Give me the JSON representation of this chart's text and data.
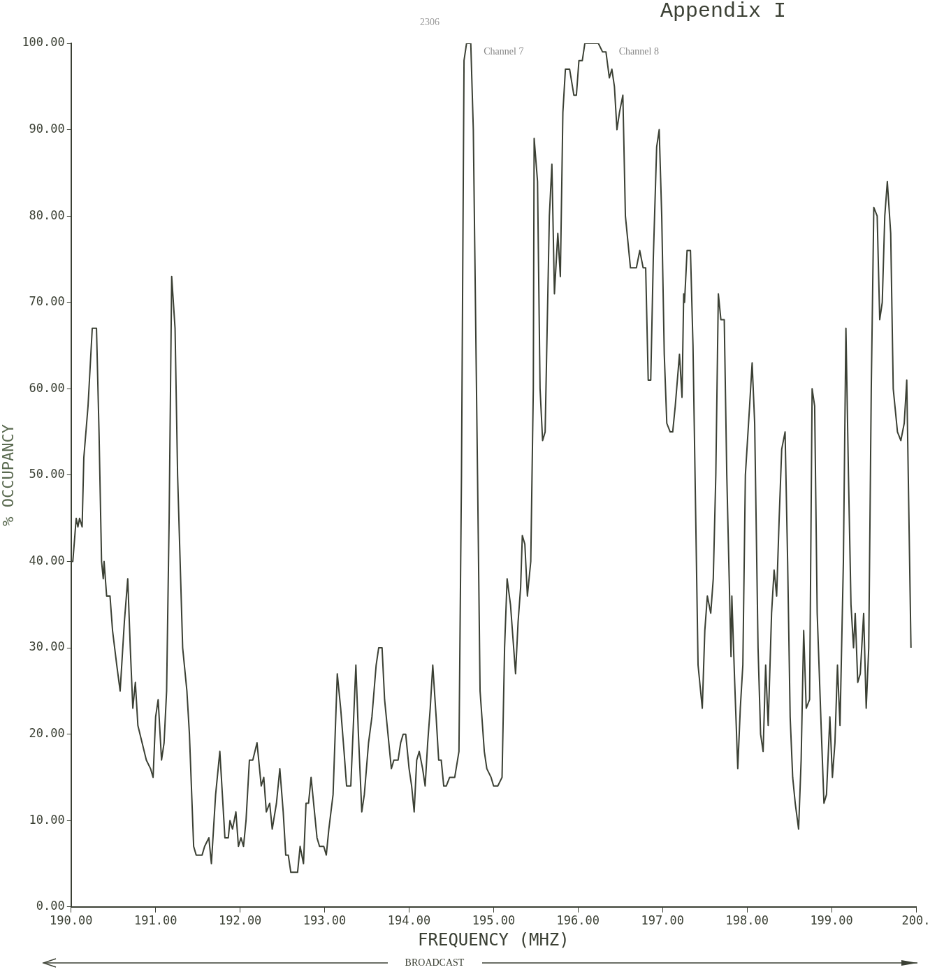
{
  "chart_data": {
    "type": "line",
    "title": "Appendix I",
    "xlabel": "FREQUENCY (MHZ)",
    "ylabel": "% OCCUPANCY",
    "xlim": [
      190,
      200
    ],
    "ylim": [
      0,
      100
    ],
    "xticks": [
      {
        "value": 190,
        "label": "190.00"
      },
      {
        "value": 191,
        "label": "191.00"
      },
      {
        "value": 192,
        "label": "192.00"
      },
      {
        "value": 193,
        "label": "193.00"
      },
      {
        "value": 194,
        "label": "194.00"
      },
      {
        "value": 195,
        "label": "195.00"
      },
      {
        "value": 196,
        "label": "196.00"
      },
      {
        "value": 197,
        "label": "197.00"
      },
      {
        "value": 198,
        "label": "198.00"
      },
      {
        "value": 199,
        "label": "199.00"
      },
      {
        "value": 200,
        "label": "200."
      }
    ],
    "yticks": [
      {
        "value": 0,
        "label": "0.00"
      },
      {
        "value": 10,
        "label": "10.00"
      },
      {
        "value": 20,
        "label": "20.00"
      },
      {
        "value": 30,
        "label": "30.00"
      },
      {
        "value": 40,
        "label": "40.00"
      },
      {
        "value": 50,
        "label": "50.00"
      },
      {
        "value": 60,
        "label": "60.00"
      },
      {
        "value": 70,
        "label": "70.00"
      },
      {
        "value": 80,
        "label": "80.00"
      },
      {
        "value": 90,
        "label": "90.00"
      },
      {
        "value": 100,
        "label": "100.00"
      }
    ],
    "grid": false,
    "legend": false,
    "marker": "none",
    "line_style": "solid",
    "annotations": [
      "2306",
      "Channel 7",
      "Channel 8",
      "BROADCAST"
    ],
    "series": [
      {
        "color": "#3b4034",
        "x": [
          190.0,
          190.02,
          190.06,
          190.08,
          190.1,
          190.13,
          190.15,
          190.2,
          190.25,
          190.3,
          190.33,
          190.36,
          190.38,
          190.39,
          190.42,
          190.46,
          190.49,
          190.54,
          190.58,
          190.63,
          190.67,
          190.7,
          190.73,
          190.76,
          190.79,
          190.84,
          190.89,
          190.94,
          190.97,
          191.0,
          191.03,
          191.07,
          191.1,
          191.13,
          191.16,
          191.19,
          191.23,
          191.26,
          191.32,
          191.37,
          191.4,
          191.45,
          191.48,
          191.55,
          191.58,
          191.63,
          191.66,
          191.71,
          191.76,
          191.82,
          191.86,
          191.88,
          191.91,
          191.95,
          191.98,
          192.01,
          192.04,
          192.07,
          192.11,
          192.15,
          192.2,
          192.25,
          192.28,
          192.31,
          192.35,
          192.38,
          192.43,
          192.47,
          192.51,
          192.54,
          192.57,
          192.6,
          192.68,
          192.71,
          192.75,
          192.78,
          192.81,
          192.84,
          192.87,
          192.91,
          192.94,
          192.99,
          193.02,
          193.05,
          193.1,
          193.15,
          193.19,
          193.23,
          193.26,
          193.31,
          193.37,
          193.4,
          193.44,
          193.47,
          193.52,
          193.56,
          193.61,
          193.64,
          193.68,
          193.71,
          193.74,
          193.79,
          193.82,
          193.87,
          193.9,
          193.93,
          193.96,
          194.0,
          194.03,
          194.06,
          194.09,
          194.12,
          194.16,
          194.19,
          194.22,
          194.25,
          194.28,
          194.32,
          194.35,
          194.38,
          194.41,
          194.44,
          194.48,
          194.54,
          194.59,
          194.62,
          194.65,
          194.68,
          194.73,
          194.76,
          194.81,
          194.84,
          194.89,
          194.92,
          194.97,
          195.0,
          195.05,
          195.1,
          195.13,
          195.16,
          195.2,
          195.23,
          195.26,
          195.29,
          195.32,
          195.34,
          195.37,
          195.4,
          195.44,
          195.47,
          195.48,
          195.52,
          195.55,
          195.58,
          195.61,
          195.66,
          195.69,
          195.72,
          195.76,
          195.79,
          195.82,
          195.85,
          195.9,
          195.95,
          195.98,
          196.01,
          196.05,
          196.08,
          196.24,
          196.29,
          196.33,
          196.37,
          196.4,
          196.43,
          196.46,
          196.49,
          196.53,
          196.56,
          196.62,
          196.69,
          196.73,
          196.77,
          196.8,
          196.83,
          196.86,
          196.89,
          196.93,
          196.96,
          196.99,
          197.02,
          197.05,
          197.09,
          197.12,
          197.15,
          197.2,
          197.23,
          197.25,
          197.26,
          197.29,
          197.33,
          197.36,
          197.42,
          197.47,
          197.5,
          197.53,
          197.57,
          197.6,
          197.63,
          197.66,
          197.69,
          197.73,
          197.76,
          197.81,
          197.82,
          197.85,
          197.89,
          197.92,
          197.95,
          197.98,
          198.03,
          198.06,
          198.09,
          198.13,
          198.16,
          198.19,
          198.22,
          198.25,
          198.29,
          198.32,
          198.35,
          198.38,
          198.41,
          198.45,
          198.48,
          198.51,
          198.54,
          198.57,
          198.61,
          198.64,
          198.67,
          198.7,
          198.74,
          198.77,
          198.8,
          198.83,
          198.88,
          198.91,
          198.94,
          198.98,
          199.01,
          199.04,
          199.07,
          199.1,
          199.14,
          199.17,
          199.2,
          199.23,
          199.26,
          199.28,
          199.31,
          199.34,
          199.38,
          199.41,
          199.44,
          199.47,
          199.5,
          199.54,
          199.57,
          199.6,
          199.63,
          199.66,
          199.7,
          199.73,
          199.78,
          199.82,
          199.86,
          199.89,
          199.94
        ],
        "values": [
          40,
          40,
          45,
          44,
          45,
          44,
          52,
          58,
          67,
          67,
          55,
          40,
          38,
          40,
          36,
          36,
          32,
          28,
          25,
          33,
          38,
          30,
          23,
          26,
          21,
          19,
          17,
          16,
          15,
          22,
          24,
          17,
          19,
          25,
          45,
          73,
          67,
          50,
          30,
          25,
          20,
          7,
          6,
          6,
          7,
          8,
          5,
          13,
          18,
          8,
          8,
          10,
          9,
          11,
          7,
          8,
          7,
          10,
          17,
          17,
          19,
          14,
          15,
          11,
          12,
          9,
          12,
          16,
          11,
          6,
          6,
          4,
          4,
          7,
          5,
          12,
          12,
          15,
          12,
          8,
          7,
          7,
          6,
          9,
          13,
          27,
          23,
          18,
          14,
          14,
          28,
          20,
          11,
          13,
          19,
          22,
          28,
          30,
          30,
          24,
          21,
          16,
          17,
          17,
          19,
          20,
          20,
          16,
          14,
          11,
          17,
          18,
          16,
          14,
          19,
          23,
          28,
          22,
          17,
          17,
          14,
          14,
          15,
          15,
          18,
          50,
          98,
          100,
          100,
          90,
          50,
          25,
          18,
          16,
          15,
          14,
          14,
          15,
          30,
          38,
          35,
          31,
          27,
          33,
          37,
          43,
          42,
          36,
          40,
          60,
          89,
          84,
          60,
          54,
          55,
          80,
          86,
          71,
          78,
          73,
          92,
          97,
          97,
          94,
          94,
          98,
          98,
          100,
          100,
          99,
          99,
          96,
          97,
          95,
          90,
          92,
          94,
          80,
          74,
          74,
          76,
          74,
          74,
          61,
          61,
          75,
          88,
          90,
          80,
          64,
          56,
          55,
          55,
          58,
          64,
          59,
          71,
          70,
          76,
          76,
          65,
          28,
          23,
          32,
          36,
          34,
          38,
          50,
          71,
          68,
          68,
          50,
          29,
          36,
          27,
          16,
          23,
          28,
          50,
          58,
          63,
          56,
          30,
          20,
          18,
          28,
          21,
          34,
          39,
          36,
          45,
          53,
          55,
          40,
          22,
          15,
          12,
          9,
          17,
          32,
          23,
          24,
          60,
          58,
          34,
          20,
          12,
          13,
          22,
          15,
          19,
          28,
          21,
          40,
          67,
          50,
          35,
          30,
          34,
          26,
          27,
          34,
          23,
          30,
          60,
          81,
          80,
          68,
          70,
          80,
          84,
          78,
          60,
          55,
          54,
          56,
          61,
          30
        ]
      }
    ]
  }
}
